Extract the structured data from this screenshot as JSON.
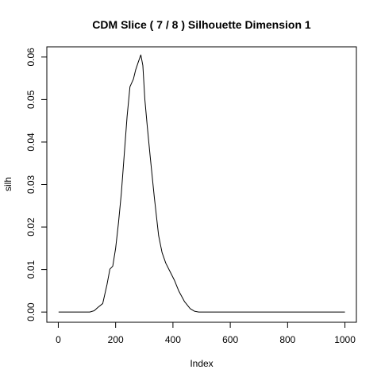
{
  "chart_data": {
    "type": "line",
    "title": "CDM Slice ( 7 / 8 )  Silhouette Dimension 1",
    "xlabel": "Index",
    "ylabel": "silh",
    "xlim": [
      -40,
      1040
    ],
    "ylim": [
      -0.0024,
      0.0624
    ],
    "x_ticks": [
      0,
      200,
      400,
      600,
      800,
      1000
    ],
    "x_tick_labels": [
      "0",
      "200",
      "400",
      "600",
      "800",
      "1000"
    ],
    "y_ticks": [
      0.0,
      0.01,
      0.02,
      0.03,
      0.04,
      0.05,
      0.06
    ],
    "y_tick_labels": [
      "0.00",
      "0.01",
      "0.02",
      "0.03",
      "0.04",
      "0.05",
      "0.06"
    ],
    "grid": false,
    "series": [
      {
        "color": "#000000",
        "x": [
          1,
          110,
          125,
          140,
          155,
          170,
          180,
          190,
          200,
          210,
          220,
          230,
          240,
          250,
          262,
          270,
          280,
          288,
          295,
          302,
          310,
          320,
          335,
          350,
          362,
          375,
          390,
          405,
          420,
          440,
          460,
          475,
          490,
          520,
          600,
          700,
          800,
          900,
          1000
        ],
        "y": [
          0.0,
          0.0,
          0.0003,
          0.0012,
          0.002,
          0.0065,
          0.0101,
          0.0108,
          0.015,
          0.021,
          0.028,
          0.037,
          0.046,
          0.053,
          0.0548,
          0.057,
          0.059,
          0.0605,
          0.058,
          0.05,
          0.044,
          0.037,
          0.027,
          0.018,
          0.014,
          0.0115,
          0.0095,
          0.0075,
          0.005,
          0.0025,
          0.0008,
          0.0002,
          0.0,
          0.0,
          0.0,
          0.0,
          0.0,
          0.0,
          0.0
        ]
      }
    ]
  }
}
